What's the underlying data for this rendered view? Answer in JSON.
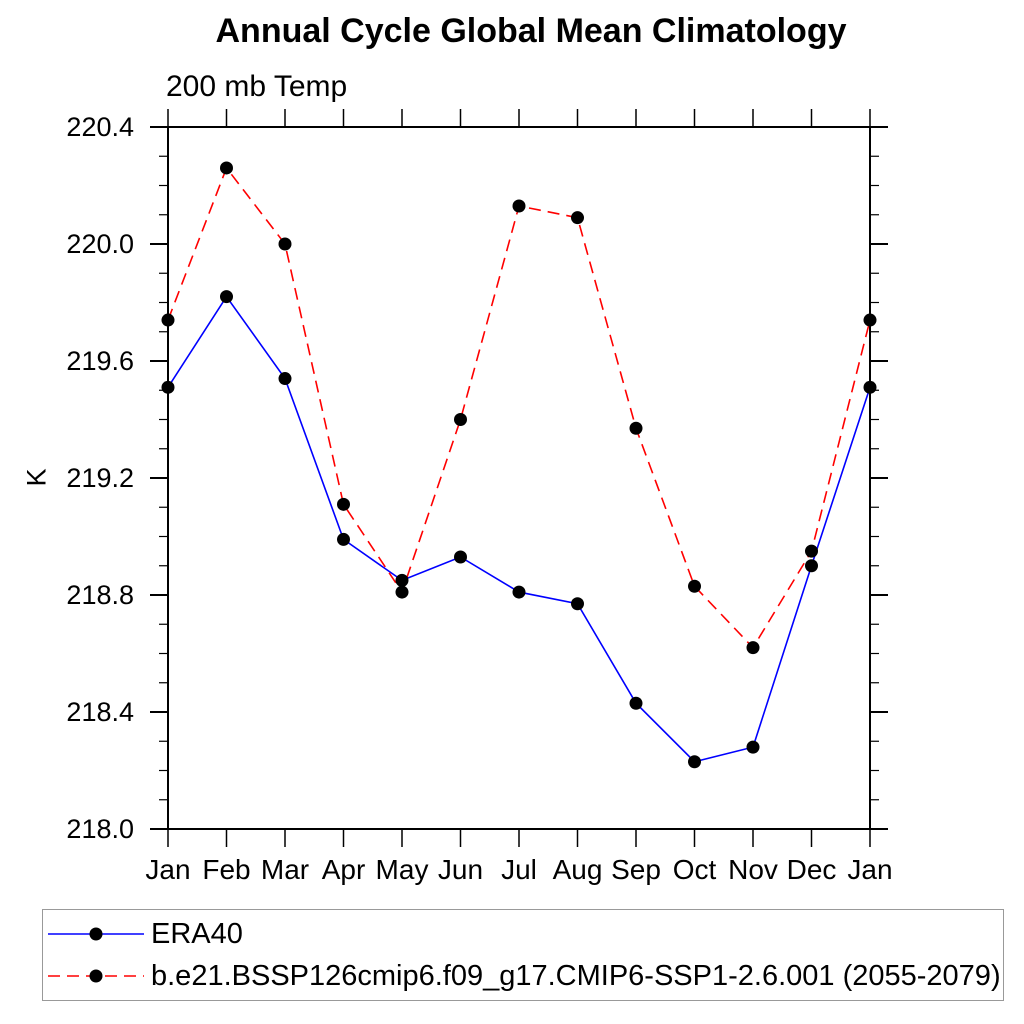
{
  "page": {
    "background": "#ffffff",
    "text_color": "#000000"
  },
  "chart_data": {
    "type": "line",
    "title": "Annual Cycle Global Mean Climatology",
    "subtitle": "200 mb Temp",
    "ylabel": "K",
    "xlabel": "",
    "ylim": [
      218.0,
      220.4
    ],
    "ytick_step": 0.4,
    "yminor_step": 0.1,
    "yticks": [
      "220.4",
      "220.0",
      "219.6",
      "219.2",
      "218.8",
      "218.4",
      "218.0"
    ],
    "categories": [
      "Jan",
      "Feb",
      "Mar",
      "Apr",
      "May",
      "Jun",
      "Jul",
      "Aug",
      "Sep",
      "Oct",
      "Nov",
      "Dec",
      "Jan"
    ],
    "grid": false,
    "legend_position": "bottom",
    "marker": "filled-circle",
    "marker_color": "#000000",
    "series": [
      {
        "name": "ERA40",
        "color": "#0000ff",
        "style": "solid",
        "values": [
          219.51,
          219.82,
          219.54,
          218.99,
          218.85,
          218.93,
          218.81,
          218.77,
          218.43,
          218.23,
          218.28,
          218.9,
          219.51
        ]
      },
      {
        "name": "b.e21.BSSP126cmip6.f09_g17.CMIP6-SSP1-2.6.001 (2055-2079)",
        "color": "#ff0000",
        "style": "dashed",
        "values": [
          219.74,
          220.26,
          220.0,
          219.11,
          218.81,
          219.4,
          220.13,
          220.09,
          219.37,
          218.83,
          218.62,
          218.95,
          219.74
        ]
      }
    ]
  }
}
